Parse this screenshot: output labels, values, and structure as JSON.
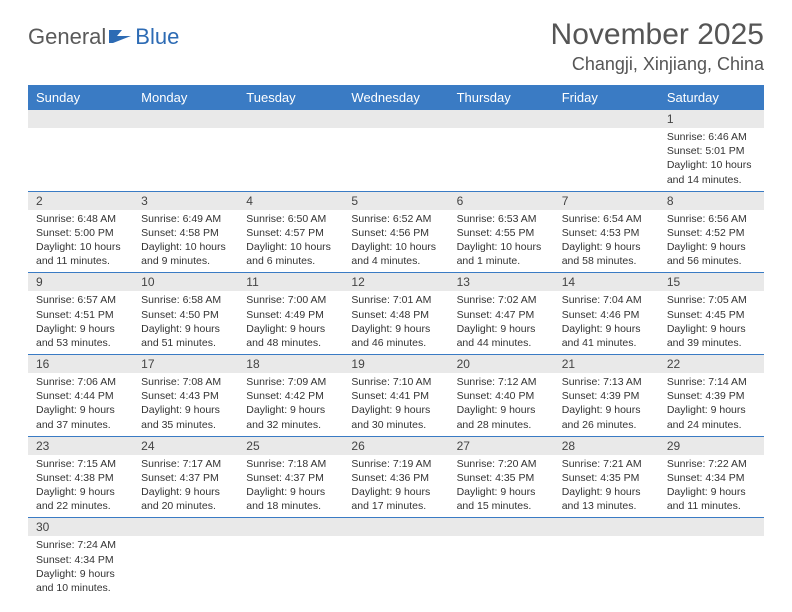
{
  "logo": {
    "text1": "General",
    "text2": "Blue",
    "color1": "#5a5a5a",
    "color2": "#2d6bb4"
  },
  "title": "November 2025",
  "location": "Changji, Xinjiang, China",
  "colors": {
    "header_bg": "#3a7bc4",
    "header_text": "#ffffff",
    "daynum_bg": "#e9e9e9",
    "border": "#3a7bc4",
    "body_text": "#333333",
    "title_text": "#555555"
  },
  "weekdays": [
    "Sunday",
    "Monday",
    "Tuesday",
    "Wednesday",
    "Thursday",
    "Friday",
    "Saturday"
  ],
  "weeks": [
    [
      null,
      null,
      null,
      null,
      null,
      null,
      {
        "n": "1",
        "sr": "6:46 AM",
        "ss": "5:01 PM",
        "dl": "10 hours and 14 minutes."
      }
    ],
    [
      {
        "n": "2",
        "sr": "6:48 AM",
        "ss": "5:00 PM",
        "dl": "10 hours and 11 minutes."
      },
      {
        "n": "3",
        "sr": "6:49 AM",
        "ss": "4:58 PM",
        "dl": "10 hours and 9 minutes."
      },
      {
        "n": "4",
        "sr": "6:50 AM",
        "ss": "4:57 PM",
        "dl": "10 hours and 6 minutes."
      },
      {
        "n": "5",
        "sr": "6:52 AM",
        "ss": "4:56 PM",
        "dl": "10 hours and 4 minutes."
      },
      {
        "n": "6",
        "sr": "6:53 AM",
        "ss": "4:55 PM",
        "dl": "10 hours and 1 minute."
      },
      {
        "n": "7",
        "sr": "6:54 AM",
        "ss": "4:53 PM",
        "dl": "9 hours and 58 minutes."
      },
      {
        "n": "8",
        "sr": "6:56 AM",
        "ss": "4:52 PM",
        "dl": "9 hours and 56 minutes."
      }
    ],
    [
      {
        "n": "9",
        "sr": "6:57 AM",
        "ss": "4:51 PM",
        "dl": "9 hours and 53 minutes."
      },
      {
        "n": "10",
        "sr": "6:58 AM",
        "ss": "4:50 PM",
        "dl": "9 hours and 51 minutes."
      },
      {
        "n": "11",
        "sr": "7:00 AM",
        "ss": "4:49 PM",
        "dl": "9 hours and 48 minutes."
      },
      {
        "n": "12",
        "sr": "7:01 AM",
        "ss": "4:48 PM",
        "dl": "9 hours and 46 minutes."
      },
      {
        "n": "13",
        "sr": "7:02 AM",
        "ss": "4:47 PM",
        "dl": "9 hours and 44 minutes."
      },
      {
        "n": "14",
        "sr": "7:04 AM",
        "ss": "4:46 PM",
        "dl": "9 hours and 41 minutes."
      },
      {
        "n": "15",
        "sr": "7:05 AM",
        "ss": "4:45 PM",
        "dl": "9 hours and 39 minutes."
      }
    ],
    [
      {
        "n": "16",
        "sr": "7:06 AM",
        "ss": "4:44 PM",
        "dl": "9 hours and 37 minutes."
      },
      {
        "n": "17",
        "sr": "7:08 AM",
        "ss": "4:43 PM",
        "dl": "9 hours and 35 minutes."
      },
      {
        "n": "18",
        "sr": "7:09 AM",
        "ss": "4:42 PM",
        "dl": "9 hours and 32 minutes."
      },
      {
        "n": "19",
        "sr": "7:10 AM",
        "ss": "4:41 PM",
        "dl": "9 hours and 30 minutes."
      },
      {
        "n": "20",
        "sr": "7:12 AM",
        "ss": "4:40 PM",
        "dl": "9 hours and 28 minutes."
      },
      {
        "n": "21",
        "sr": "7:13 AM",
        "ss": "4:39 PM",
        "dl": "9 hours and 26 minutes."
      },
      {
        "n": "22",
        "sr": "7:14 AM",
        "ss": "4:39 PM",
        "dl": "9 hours and 24 minutes."
      }
    ],
    [
      {
        "n": "23",
        "sr": "7:15 AM",
        "ss": "4:38 PM",
        "dl": "9 hours and 22 minutes."
      },
      {
        "n": "24",
        "sr": "7:17 AM",
        "ss": "4:37 PM",
        "dl": "9 hours and 20 minutes."
      },
      {
        "n": "25",
        "sr": "7:18 AM",
        "ss": "4:37 PM",
        "dl": "9 hours and 18 minutes."
      },
      {
        "n": "26",
        "sr": "7:19 AM",
        "ss": "4:36 PM",
        "dl": "9 hours and 17 minutes."
      },
      {
        "n": "27",
        "sr": "7:20 AM",
        "ss": "4:35 PM",
        "dl": "9 hours and 15 minutes."
      },
      {
        "n": "28",
        "sr": "7:21 AM",
        "ss": "4:35 PM",
        "dl": "9 hours and 13 minutes."
      },
      {
        "n": "29",
        "sr": "7:22 AM",
        "ss": "4:34 PM",
        "dl": "9 hours and 11 minutes."
      }
    ],
    [
      {
        "n": "30",
        "sr": "7:24 AM",
        "ss": "4:34 PM",
        "dl": "9 hours and 10 minutes."
      },
      null,
      null,
      null,
      null,
      null,
      null
    ]
  ],
  "labels": {
    "sunrise": "Sunrise: ",
    "sunset": "Sunset: ",
    "daylight": "Daylight: "
  }
}
